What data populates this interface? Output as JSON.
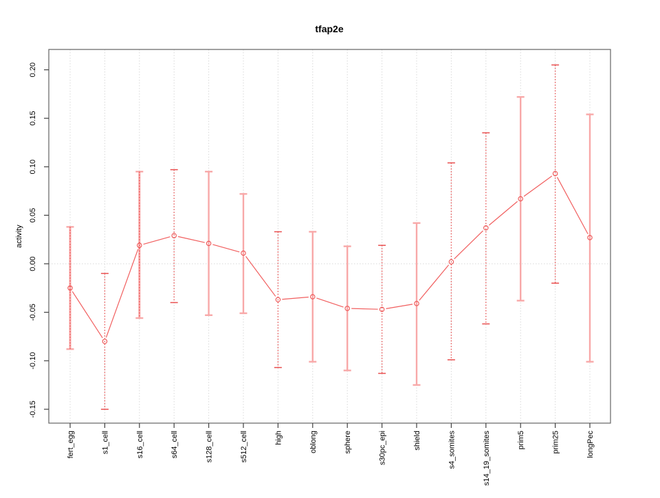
{
  "title": "tfap2e",
  "chart_data": {
    "type": "line",
    "title": "tfap2e",
    "xlabel": "",
    "ylabel": "activity",
    "ylim": [
      -0.164,
      0.221
    ],
    "y_ticks": [
      "-0.15",
      "-0.10",
      "-0.05",
      "0.00",
      "0.05",
      "0.10",
      "0.15",
      "0.20"
    ],
    "grid": {
      "vertical_per_category": true,
      "horizontal_zero_line": true,
      "style": "dotted"
    },
    "legend": "none",
    "marker": "open-circle",
    "categories": [
      "fert_egg",
      "s1_cell",
      "s16_cell",
      "s64_cell",
      "s128_cell",
      "s512_cell",
      "high",
      "oblong",
      "sphere",
      "s30pc_epi",
      "shield",
      "s4_somites",
      "s14_19_somites",
      "prim5",
      "prim25",
      "longPec"
    ],
    "series": [
      {
        "name": "mean",
        "values": [
          -0.025,
          -0.08,
          0.019,
          0.029,
          0.021,
          0.011,
          -0.037,
          -0.034,
          -0.046,
          -0.047,
          -0.041,
          0.002,
          0.037,
          0.067,
          0.093,
          0.027
        ]
      },
      {
        "name": "upper_error",
        "values": [
          0.038,
          -0.01,
          0.095,
          0.097,
          0.095,
          0.072,
          0.033,
          0.033,
          0.018,
          0.019,
          0.042,
          0.104,
          0.135,
          0.172,
          0.205,
          0.154
        ]
      },
      {
        "name": "lower_error",
        "values": [
          -0.088,
          -0.15,
          -0.056,
          -0.04,
          -0.053,
          -0.051,
          -0.107,
          -0.101,
          -0.11,
          -0.113,
          -0.125,
          -0.099,
          -0.062,
          -0.038,
          -0.02,
          -0.101
        ]
      }
    ],
    "error_bar_styles": [
      "both",
      "dotted",
      "both",
      "dotted",
      "solid",
      "solid",
      "dotted",
      "solid",
      "solid",
      "dotted",
      "solid",
      "dotted",
      "dotted",
      "solid",
      "dotted",
      "solid"
    ],
    "colors": {
      "line": "#f15e5e",
      "marker_stroke": "#ee5252",
      "marker_fill": "#ffffff",
      "bar_solid": "#f8a8a8",
      "bar_dotted": "#e94f4f",
      "grid": "#d8d8d8",
      "box": "#6e6e6e",
      "tick": "#404040",
      "text": "#000000",
      "background": "#ffffff"
    }
  }
}
